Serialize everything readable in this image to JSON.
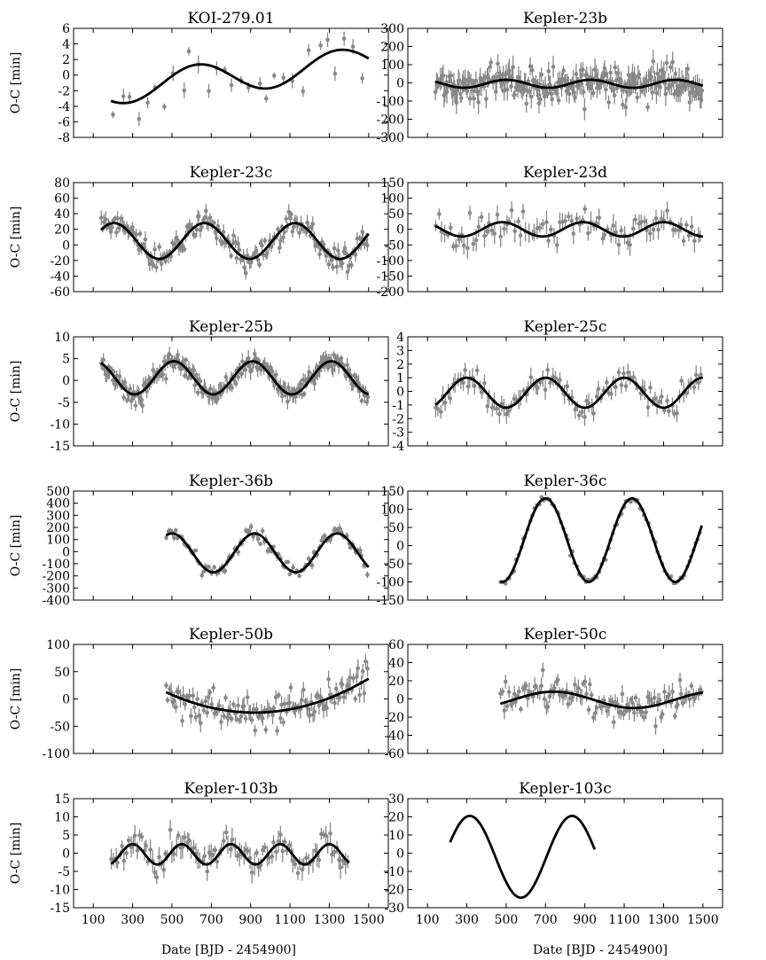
{
  "figure": {
    "shared_xlabel": "Date [BJD - 2454900]",
    "x_ticks": [
      100,
      300,
      500,
      700,
      900,
      1100,
      1300,
      1500
    ],
    "x_range": [
      0,
      1600
    ],
    "model_color": "#000000",
    "data_color": "#888888"
  },
  "chart_data": [
    {
      "type": "scatter",
      "title": "KOI-279.01",
      "ylabel": "O-C [min]",
      "ylim": [
        -8,
        6
      ],
      "yticks": [
        -8,
        -6,
        -4,
        -2,
        0,
        2,
        4,
        6
      ],
      "model": {
        "kind": "sine",
        "amplitude": 2.0,
        "period": 720,
        "peak": 630,
        "offset": -0.2,
        "trend": 0.0026,
        "x_start": 190,
        "x_end": 1500
      },
      "points": {
        "n": 30,
        "x_start": 195,
        "x_end": 1495,
        "scatter": 2.2,
        "error": 0.8,
        "seed": 11
      }
    },
    {
      "type": "scatter",
      "title": "Kepler-23b",
      "ylabel": "",
      "ylim": [
        -300,
        300
      ],
      "yticks": [
        -300,
        -200,
        -100,
        0,
        100,
        200,
        300
      ],
      "model": {
        "kind": "sine",
        "amplitude": 22,
        "period": 430,
        "peak": 930,
        "offset": -5,
        "trend": 0,
        "x_start": 140,
        "x_end": 1500
      },
      "points": {
        "n": 280,
        "x_start": 140,
        "x_end": 1500,
        "scatter": 55,
        "error": 45,
        "seed": 23
      }
    },
    {
      "type": "scatter",
      "title": "Kepler-23c",
      "ylabel": "O-C [min]",
      "ylim": [
        -60,
        80
      ],
      "yticks": [
        -60,
        -40,
        -20,
        0,
        20,
        40,
        60,
        80
      ],
      "model": {
        "kind": "sine",
        "amplitude": 23,
        "period": 460,
        "peak": 1125,
        "offset": 5,
        "trend": 0,
        "x_start": 140,
        "x_end": 1500
      },
      "points": {
        "n": 200,
        "x_start": 140,
        "x_end": 1500,
        "scatter": 9,
        "error": 7,
        "seed": 31
      }
    },
    {
      "type": "scatter",
      "title": "Kepler-23d",
      "ylabel": "",
      "ylim": [
        -200,
        150
      ],
      "yticks": [
        -200,
        -150,
        -100,
        -50,
        0,
        50,
        100,
        150
      ],
      "model": {
        "kind": "sine",
        "amplitude": 23,
        "period": 410,
        "peak": 1300,
        "offset": 0,
        "trend": 0,
        "x_start": 140,
        "x_end": 1500
      },
      "points": {
        "n": 95,
        "x_start": 140,
        "x_end": 1500,
        "scatter": 35,
        "error": 25,
        "seed": 41
      }
    },
    {
      "type": "scatter",
      "title": "Kepler-25b",
      "ylabel": "O-C [min]",
      "ylim": [
        -15,
        10
      ],
      "yticks": [
        -15,
        -10,
        -5,
        0,
        5,
        10
      ],
      "model": {
        "kind": "sine",
        "amplitude": 3.8,
        "period": 400,
        "peak": 910,
        "offset": 0.6,
        "trend": 0,
        "x_start": 140,
        "x_end": 1500
      },
      "points": {
        "n": 260,
        "x_start": 140,
        "x_end": 1500,
        "scatter": 1.3,
        "error": 1.3,
        "seed": 51
      }
    },
    {
      "type": "scatter",
      "title": "Kepler-25c",
      "ylabel": "",
      "ylim": [
        -4,
        4
      ],
      "yticks": [
        -4,
        -3,
        -2,
        -1,
        0,
        1,
        2,
        3,
        4
      ],
      "model": {
        "kind": "sine",
        "amplitude": 1.1,
        "period": 400,
        "peak": 1500,
        "offset": -0.1,
        "trend": 0,
        "x_start": 140,
        "x_end": 1500
      },
      "points": {
        "n": 110,
        "x_start": 140,
        "x_end": 1500,
        "scatter": 0.5,
        "error": 0.5,
        "seed": 61
      }
    },
    {
      "type": "scatter",
      "title": "Kepler-36b",
      "ylabel": "O-C [min]",
      "ylim": [
        -400,
        500
      ],
      "yticks": [
        -400,
        -300,
        -200,
        -100,
        0,
        100,
        200,
        300,
        400,
        500
      ],
      "model": {
        "kind": "sine",
        "amplitude": 160,
        "period": 420,
        "peak": 920,
        "offset": -10,
        "trend": 0,
        "x_start": 470,
        "x_end": 1500
      },
      "points": {
        "n": 110,
        "x_start": 470,
        "x_end": 1500,
        "scatter": 35,
        "error": 25,
        "seed": 71
      }
    },
    {
      "type": "scatter",
      "title": "Kepler-36c",
      "ylabel": "",
      "ylim": [
        -150,
        150
      ],
      "yticks": [
        -150,
        -100,
        -50,
        0,
        50,
        100,
        150
      ],
      "model": {
        "kind": "sine",
        "amplitude": 115,
        "period": 440,
        "peak": 1140,
        "offset": 15,
        "trend": 0,
        "x_start": 470,
        "x_end": 1495
      },
      "points": {
        "n": 90,
        "x_start": 470,
        "x_end": 1495,
        "scatter": 6,
        "error": 3,
        "seed": 81
      }
    },
    {
      "type": "scatter",
      "title": "Kepler-50b",
      "ylabel": "O-C [min]",
      "ylim": [
        -100,
        100
      ],
      "yticks": [
        -100,
        -50,
        0,
        50,
        100
      ],
      "model": {
        "kind": "quadratic",
        "vertex_x": 920,
        "vertex_y": -25,
        "curvature": 0.000185,
        "x_start": 470,
        "x_end": 1500
      },
      "points": {
        "n": 130,
        "x_start": 470,
        "x_end": 1500,
        "scatter": 20,
        "error": 12,
        "seed": 91
      }
    },
    {
      "type": "scatter",
      "title": "Kepler-50c",
      "ylabel": "",
      "ylim": [
        -60,
        60
      ],
      "yticks": [
        -60,
        -40,
        -20,
        0,
        20,
        40,
        60
      ],
      "model": {
        "kind": "sine",
        "amplitude": 9,
        "period": 820,
        "peak": 740,
        "offset": -1,
        "trend": 0,
        "x_start": 470,
        "x_end": 1500
      },
      "points": {
        "n": 120,
        "x_start": 470,
        "x_end": 1500,
        "scatter": 11,
        "error": 7,
        "seed": 101
      }
    },
    {
      "type": "scatter",
      "title": "Kepler-103b",
      "ylabel": "O-C [min]",
      "ylim": [
        -15,
        15
      ],
      "yticks": [
        -15,
        -10,
        -5,
        0,
        5,
        10,
        15
      ],
      "model": {
        "kind": "sine",
        "amplitude": 2.8,
        "period": 250,
        "peak": 1300,
        "offset": -0.3,
        "trend": 0,
        "x_start": 190,
        "x_end": 1400
      },
      "points": {
        "n": 110,
        "x_start": 190,
        "x_end": 1400,
        "scatter": 2.5,
        "error": 2.2,
        "seed": 111
      }
    },
    {
      "type": "line",
      "title": "Kepler-103c",
      "ylabel": "",
      "ylim": [
        -30,
        30
      ],
      "yticks": [
        -30,
        -20,
        -10,
        0,
        10,
        20,
        30
      ],
      "model": {
        "kind": "sine",
        "amplitude": 22.5,
        "period": 520,
        "peak": 835,
        "offset": -2,
        "trend": 0,
        "x_start": 215,
        "x_end": 950
      },
      "points": {
        "n": 0,
        "x_start": 215,
        "x_end": 950,
        "scatter": 0,
        "error": 0,
        "seed": 121
      }
    }
  ]
}
